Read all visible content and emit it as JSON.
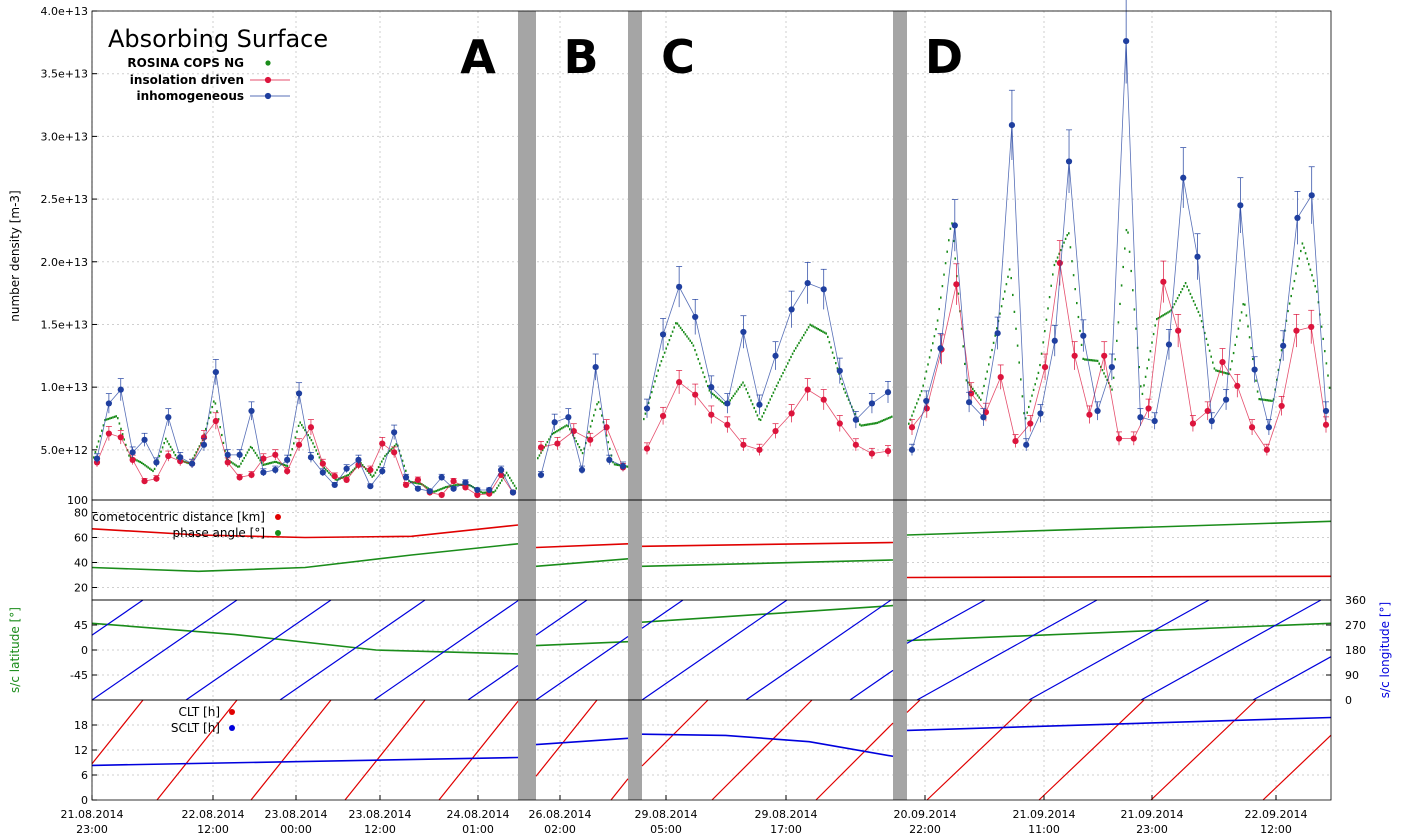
{
  "title": "Absorbing Surface",
  "colors": {
    "model_red": "#dc143c",
    "model_blue": "#1f3f9f",
    "measure_green": "#1a8c1a",
    "distance_red": "#e00000",
    "lon_blue": "#0000dd",
    "gap_grey": "#a5a5a5"
  },
  "segment_labels": [
    "A",
    "B",
    "C",
    "D"
  ],
  "x_ticks": [
    {
      "d": "21.08.2014",
      "t": "23:00"
    },
    {
      "d": "22.08.2014",
      "t": "12:00"
    },
    {
      "d": "23.08.2014",
      "t": "00:00"
    },
    {
      "d": "23.08.2014",
      "t": "12:00"
    },
    {
      "d": "24.08.2014",
      "t": "01:00"
    },
    {
      "d": "26.08.2014",
      "t": "02:00"
    },
    {
      "d": "29.08.2014",
      "t": "05:00"
    },
    {
      "d": "29.08.2014",
      "t": "17:00"
    },
    {
      "d": "20.09.2014",
      "t": "22:00"
    },
    {
      "d": "21.09.2014",
      "t": "11:00"
    },
    {
      "d": "21.09.2014",
      "t": "23:00"
    },
    {
      "d": "22.09.2014",
      "t": "12:00"
    }
  ],
  "legend_main": [
    "ROSINA COPS NG",
    "insolation driven",
    "inhomogeneous"
  ],
  "legend_geo": [
    "cometocentric distance [km]",
    "phase angle [°]"
  ],
  "legend_time": [
    "CLT [h]",
    "SCLT [h]"
  ],
  "axis_labels": {
    "density": "number density [m-3]",
    "lat": "s/c latitude [°]",
    "lon": "s/c longitude [°]"
  },
  "chart_data": [
    {
      "type": "scatter",
      "panel": "density",
      "title": "Absorbing Surface",
      "ylabel": "number density [m-3]",
      "ylim": [
        1000000000000.0,
        40000000000000.0
      ],
      "yticks": [
        "100",
        "5.0e+12",
        "1.0e+13",
        "1.5e+13",
        "2.0e+13",
        "2.5e+13",
        "3.0e+13",
        "3.5e+13",
        "4.0e+13"
      ],
      "grid": true,
      "legend": "top-left",
      "segments": {
        "A": {
          "insolation driven": [
            4.0,
            6.3,
            6.0,
            4.2,
            2.5,
            2.7,
            4.5,
            4.1,
            3.9,
            6.0,
            7.3,
            4.0,
            2.8,
            3.0,
            4.3,
            4.6,
            3.3,
            5.4,
            6.8,
            3.9,
            2.9,
            2.6,
            3.8,
            3.4,
            5.5,
            4.8,
            2.2,
            2.6,
            1.6,
            1.4,
            2.5,
            2.0,
            1.4,
            1.5,
            3.0,
            1.6
          ],
          "inhomogeneous": [
            4.3,
            8.7,
            9.8,
            4.8,
            5.8,
            4.0,
            7.6,
            4.4,
            3.9,
            5.4,
            11.2,
            4.6,
            4.6,
            8.1,
            3.2,
            3.4,
            4.2,
            9.5,
            4.4,
            3.2,
            2.2,
            3.5,
            4.2,
            2.1,
            3.3,
            6.4,
            2.8,
            1.9,
            1.7,
            2.8,
            1.9,
            2.4,
            1.8,
            1.8,
            3.4,
            1.6
          ]
        },
        "B": {
          "insolation driven": [
            5.2,
            5.5,
            6.5,
            5.8,
            6.8,
            3.6
          ],
          "inhomogeneous": [
            3.0,
            7.2,
            7.6,
            3.4,
            11.6,
            4.2,
            3.7
          ]
        },
        "C": {
          "insolation driven": [
            5.1,
            7.7,
            10.4,
            9.4,
            7.8,
            7.0,
            5.4,
            5.0,
            6.5,
            7.9,
            9.8,
            9.0,
            7.1,
            5.4,
            4.7,
            4.9
          ],
          "inhomogeneous": [
            8.3,
            14.2,
            18.0,
            15.6,
            10.0,
            8.7,
            14.4,
            8.6,
            12.5,
            16.2,
            18.3,
            17.8,
            11.3,
            7.4,
            8.7,
            9.6
          ]
        },
        "D": {
          "insolation driven": [
            6.8,
            8.3,
            13.0,
            18.2,
            9.5,
            8.0,
            10.8,
            5.7,
            7.1,
            11.6,
            19.9,
            12.5,
            7.8,
            12.5,
            5.9,
            5.9,
            8.3,
            18.4,
            14.5,
            7.1,
            8.1,
            12.0,
            10.1,
            6.8,
            5.0,
            8.5,
            14.5,
            14.8,
            7.0
          ],
          "inhomogeneous": [
            5.0,
            8.9,
            13.1,
            22.9,
            8.8,
            7.6,
            14.3,
            30.9,
            5.4,
            7.9,
            13.7,
            28.0,
            14.1,
            8.1,
            11.6,
            37.6,
            7.6,
            7.3,
            13.4,
            26.7,
            20.4,
            7.3,
            9.0,
            24.5,
            11.4,
            6.8,
            13.3,
            23.5,
            25.3,
            8.1
          ]
        }
      },
      "series_units": "1e12 m-3"
    },
    {
      "type": "line",
      "panel": "geometry",
      "yticks": [
        "20",
        "40",
        "60",
        "80"
      ],
      "ylim": [
        10,
        90
      ],
      "series": [
        {
          "name": "cometocentric distance [km]",
          "segments": {
            "A": [
              67,
              62,
              60,
              61,
              70
            ],
            "B": [
              52,
              55
            ],
            "C": [
              53,
              56
            ],
            "D": [
              28,
              29
            ]
          }
        },
        {
          "name": "phase angle [°]",
          "segments": {
            "A": [
              36,
              33,
              36,
              46,
              55
            ],
            "B": [
              37,
              43
            ],
            "C": [
              37,
              42
            ],
            "D": [
              62,
              73
            ]
          }
        }
      ]
    },
    {
      "type": "line",
      "panel": "latitude-longitude",
      "yticks_left": [
        "-45",
        "0",
        "45"
      ],
      "yticks_right": [
        "0",
        "90",
        "180",
        "270",
        "360"
      ],
      "series": [
        {
          "name": "s/c latitude [°]",
          "segments": {
            "A": [
              48,
              28,
              0,
              -7
            ],
            "B": [
              8,
              15
            ],
            "C": [
              50,
              80
            ],
            "D": [
              17,
              48
            ]
          }
        },
        {
          "name": "s/c longitude [°]",
          "note": "sawtooth 0-360"
        }
      ]
    },
    {
      "type": "line",
      "panel": "local time",
      "yticks": [
        "0",
        "6",
        "12",
        "18"
      ],
      "series": [
        {
          "name": "CLT [h]",
          "note": "sawtooth 0-24"
        },
        {
          "name": "SCLT [h]",
          "segments": {
            "A": [
              8.3,
              10.2
            ],
            "B": [
              13.3,
              14.8
            ],
            "C": [
              15.8,
              15.5,
              14.0,
              10.5
            ],
            "D": [
              16.7,
              19.8
            ]
          }
        }
      ]
    }
  ]
}
